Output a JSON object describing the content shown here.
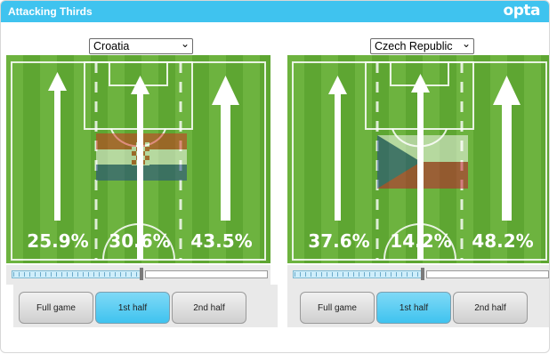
{
  "header": {
    "title": "Attacking Thirds",
    "logo": "opta"
  },
  "colors": {
    "accent": "#3fc3ef",
    "pitch_light": "#6db33f",
    "pitch_dark": "#5aa12f"
  },
  "teams": [
    {
      "selected": "Croatia",
      "flag": "croatia-flag",
      "thirds": {
        "left": "25.9%",
        "center": "30.6%",
        "right": "43.5%"
      }
    },
    {
      "selected": "Czech Republic",
      "flag": "czech-republic-flag",
      "thirds": {
        "left": "37.6%",
        "center": "14.2%",
        "right": "48.2%"
      }
    }
  ],
  "period_buttons": [
    "Full game",
    "1st half",
    "2nd half"
  ],
  "active_period": "1st half"
}
